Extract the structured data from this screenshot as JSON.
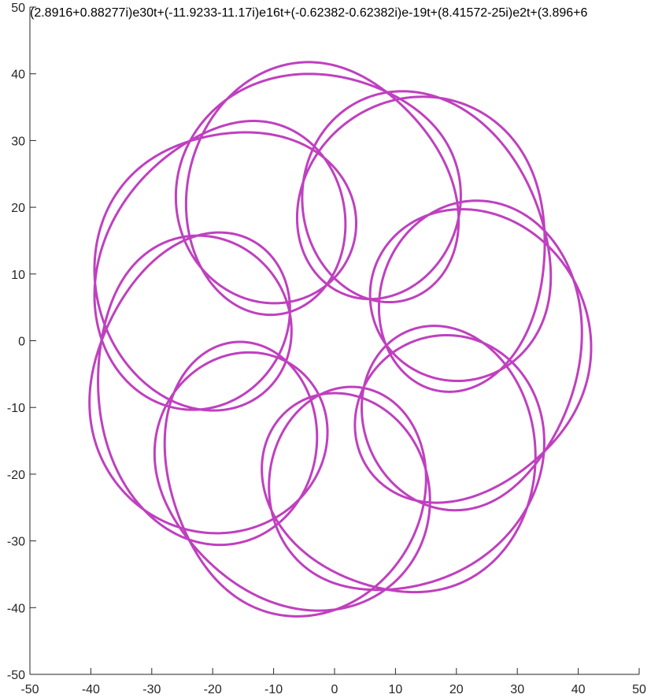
{
  "chart_data": {
    "type": "line",
    "title": "(2.8916+0.88277i)e30t+(-11.9233-11.17i)e16t+(-0.62382-0.62382i)e-19t+(8.41572-25i)e2t+(3.896+6",
    "xlabel": "",
    "ylabel": "",
    "xlim": [
      -50,
      50
    ],
    "ylim": [
      -50,
      50
    ],
    "x_ticks": [
      "-50",
      "-40",
      "-30",
      "-20",
      "-10",
      "0",
      "10",
      "20",
      "30",
      "40",
      "50"
    ],
    "y_ticks": [
      "50",
      "40",
      "30",
      "20",
      "10",
      "0",
      "-10",
      "-20",
      "-30",
      "-40",
      "-50"
    ],
    "grid": false,
    "line_color": "#bf40bf",
    "terms": [
      {
        "coef_re": 2.8916,
        "coef_im": 0.88277,
        "freq": 30
      },
      {
        "coef_re": -11.9233,
        "coef_im": -11.17,
        "freq": 16
      },
      {
        "coef_re": -0.62382,
        "coef_im": -0.62382,
        "freq": -19
      },
      {
        "coef_re": 8.41572,
        "coef_im": -25,
        "freq": 2
      }
    ],
    "t_range": [
      0,
      6.283185307
    ]
  }
}
